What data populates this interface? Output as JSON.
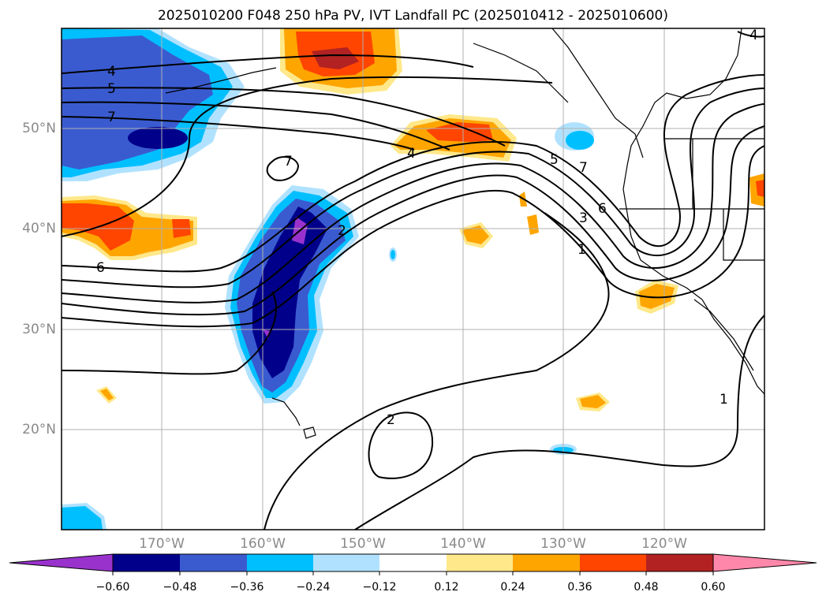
{
  "title": "2025010200 F048 250 hPa PV, IVT Landfall PC (2025010412 - 2025010600)",
  "lat_labels": [
    "50°N",
    "40°N",
    "30°N",
    "20°N"
  ],
  "lon_labels": [
    "170°W",
    "160°W",
    "150°W",
    "140°W",
    "130°W",
    "120°W"
  ],
  "colorbar": {
    "ticks": [
      "−0.60",
      "−0.48",
      "−0.36",
      "−0.24",
      "−0.12",
      "0.12",
      "0.24",
      "0.36",
      "0.48",
      "0.60"
    ],
    "colors": [
      "#9932cc",
      "#00008b",
      "#3a5bd0",
      "#00bfff",
      "#b0e2ff",
      "#ffffff",
      "#ffe88a",
      "#ffa500",
      "#ff4500",
      "#b22222",
      "#ff88aa"
    ]
  },
  "contour_labels": [
    "4",
    "5",
    "7",
    "7",
    "6",
    "4",
    "2",
    "5",
    "7",
    "6",
    "3",
    "1",
    "2",
    "1",
    "4"
  ]
}
